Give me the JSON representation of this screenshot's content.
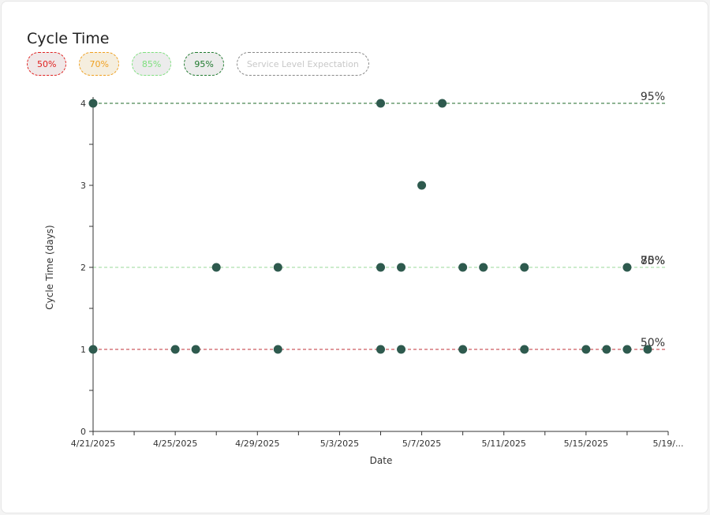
{
  "title": "Cycle Time",
  "legend": [
    {
      "label": "50%",
      "color": "#e02020",
      "bg": "#f0e8e8",
      "active": true
    },
    {
      "label": "70%",
      "color": "#f0a020",
      "bg": "#f5eede",
      "active": true
    },
    {
      "label": "85%",
      "color": "#7ee07e",
      "bg": "#ececec",
      "active": true
    },
    {
      "label": "95%",
      "color": "#1f7a2e",
      "bg": "#ececec",
      "active": true
    },
    {
      "label": "Service Level Expectation",
      "color": "#c8c8c8",
      "bg": "#ffffff",
      "active": false
    }
  ],
  "chart_data": {
    "type": "scatter",
    "xlabel": "Date",
    "ylabel": "Cycle Time (days)",
    "xlim": [
      "2025-04-21",
      "2025-05-19"
    ],
    "ylim": [
      0,
      4
    ],
    "x_tick_labels": [
      "4/21/2025",
      "4/25/2025",
      "4/29/2025",
      "5/3/2025",
      "5/7/2025",
      "5/11/2025",
      "5/15/2025",
      "5/19/..."
    ],
    "y_tick_labels": [
      "0",
      "1",
      "2",
      "3",
      "4"
    ],
    "point_color": "#2e5a4e",
    "points": [
      {
        "x": "2025-04-21",
        "y": 4
      },
      {
        "x": "2025-04-21",
        "y": 1
      },
      {
        "x": "2025-04-25",
        "y": 1
      },
      {
        "x": "2025-04-26",
        "y": 1
      },
      {
        "x": "2025-04-27",
        "y": 2
      },
      {
        "x": "2025-04-30",
        "y": 2
      },
      {
        "x": "2025-04-30",
        "y": 1
      },
      {
        "x": "2025-05-05",
        "y": 4
      },
      {
        "x": "2025-05-05",
        "y": 2
      },
      {
        "x": "2025-05-05",
        "y": 1
      },
      {
        "x": "2025-05-06",
        "y": 2
      },
      {
        "x": "2025-05-06",
        "y": 1
      },
      {
        "x": "2025-05-07",
        "y": 3
      },
      {
        "x": "2025-05-08",
        "y": 4
      },
      {
        "x": "2025-05-09",
        "y": 2
      },
      {
        "x": "2025-05-09",
        "y": 1
      },
      {
        "x": "2025-05-10",
        "y": 2
      },
      {
        "x": "2025-05-12",
        "y": 2
      },
      {
        "x": "2025-05-12",
        "y": 1
      },
      {
        "x": "2025-05-15",
        "y": 1
      },
      {
        "x": "2025-05-16",
        "y": 1
      },
      {
        "x": "2025-05-17",
        "y": 2
      },
      {
        "x": "2025-05-17",
        "y": 1
      },
      {
        "x": "2025-05-18",
        "y": 1
      }
    ],
    "percentile_lines": [
      {
        "label": "50%",
        "y": 1,
        "color": "#c0303a"
      },
      {
        "label": "70%",
        "y": 2,
        "color": "#f0b050"
      },
      {
        "label": "85%",
        "y": 2,
        "color": "#9ad89a"
      },
      {
        "label": "95%",
        "y": 4,
        "color": "#1f6a2a"
      }
    ]
  }
}
